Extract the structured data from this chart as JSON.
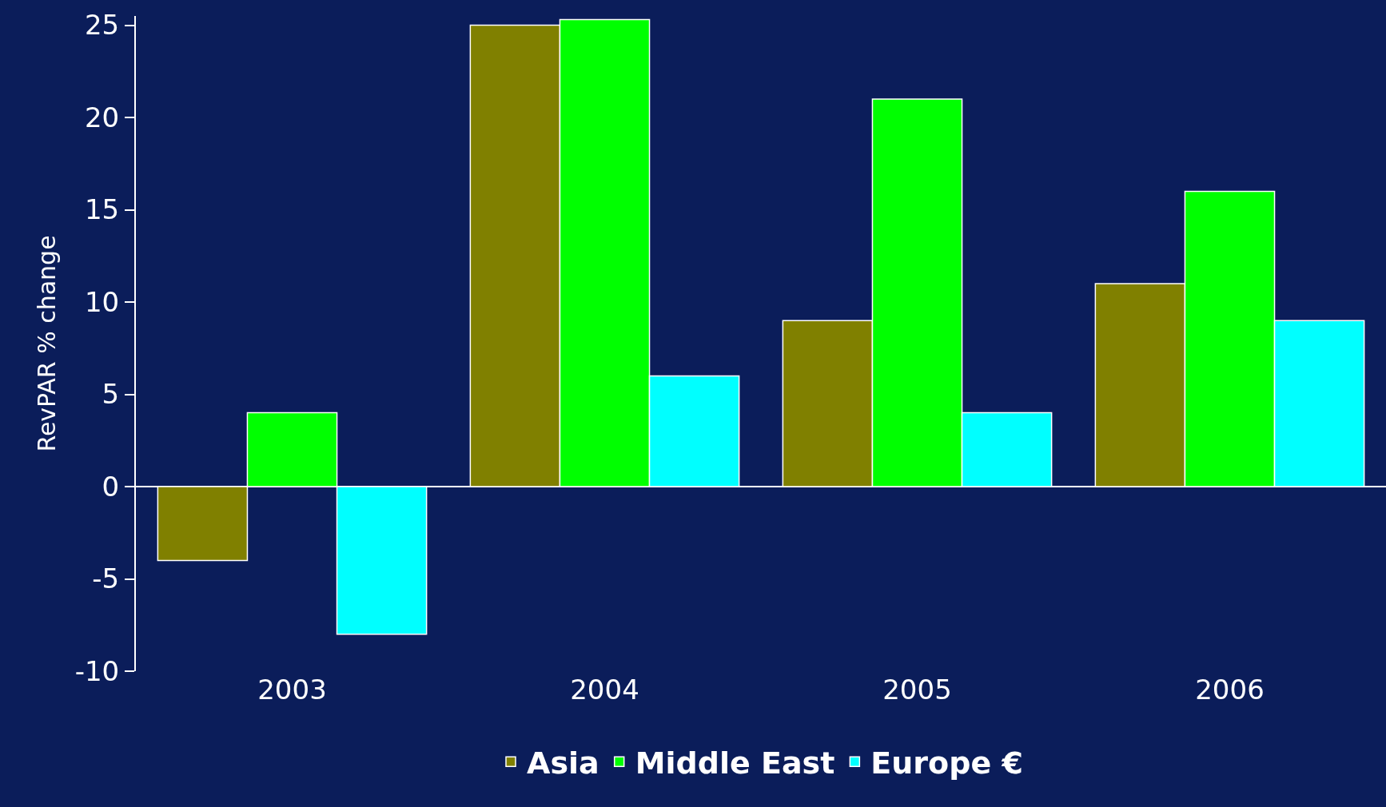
{
  "chart_data": {
    "type": "bar",
    "ylabel": "RevPAR % change",
    "categories": [
      "2003",
      "2004",
      "2005",
      "2006"
    ],
    "series": [
      {
        "name": "Asia",
        "color": "#808000",
        "values": [
          -4,
          25,
          9,
          11
        ]
      },
      {
        "name": "Middle East",
        "color": "#00ff00",
        "values": [
          4,
          25.3,
          21,
          16
        ]
      },
      {
        "name": "Europe €",
        "color": "#00ffff",
        "values": [
          -8,
          6,
          4,
          9
        ]
      }
    ],
    "ylim": [
      -10,
      25.5
    ],
    "yticks": [
      -10,
      -5,
      0,
      5,
      10,
      15,
      20,
      25
    ],
    "legend": "bottom"
  }
}
